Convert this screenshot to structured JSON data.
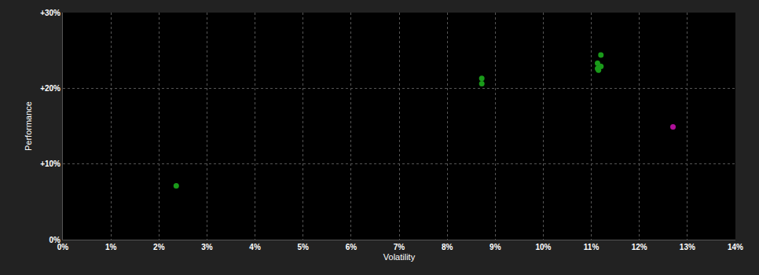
{
  "chart_data": {
    "type": "scatter",
    "x_label": "Volatility",
    "y_label": "Performance",
    "series": [
      {
        "color": "#1a9a1a",
        "x": [
          2.36,
          8.72,
          8.72,
          11.2,
          11.13,
          11.13,
          11.2,
          11.15
        ],
        "values": [
          7.1,
          21.3,
          20.6,
          24.4,
          23.3,
          22.6,
          22.9,
          22.4
        ]
      },
      {
        "color": "#b0109a",
        "x": [
          12.7
        ],
        "values": [
          14.9
        ]
      }
    ],
    "xlim": [
      0,
      14
    ],
    "xticks": [
      {
        "value": 0,
        "label": "0%"
      },
      {
        "value": 1,
        "label": "1%"
      },
      {
        "value": 2,
        "label": "2%"
      },
      {
        "value": 3,
        "label": "3%"
      },
      {
        "value": 4,
        "label": "4%"
      },
      {
        "value": 5,
        "label": "5%"
      },
      {
        "value": 6,
        "label": "6%"
      },
      {
        "value": 7,
        "label": "7%"
      },
      {
        "value": 8,
        "label": "8%"
      },
      {
        "value": 9,
        "label": "9%"
      },
      {
        "value": 10,
        "label": "10%"
      },
      {
        "value": 11,
        "label": "11%"
      },
      {
        "value": 12,
        "label": "12%"
      },
      {
        "value": 13,
        "label": "13%"
      },
      {
        "value": 14,
        "label": "14%"
      }
    ],
    "ylim": [
      0,
      30
    ],
    "yticks": [
      {
        "value": 0,
        "label": "0%"
      },
      {
        "value": 10,
        "label": "+10%"
      },
      {
        "value": 20,
        "label": "+20%"
      },
      {
        "value": 30,
        "label": "+30%"
      }
    ],
    "grid": true,
    "marker": "circle"
  }
}
